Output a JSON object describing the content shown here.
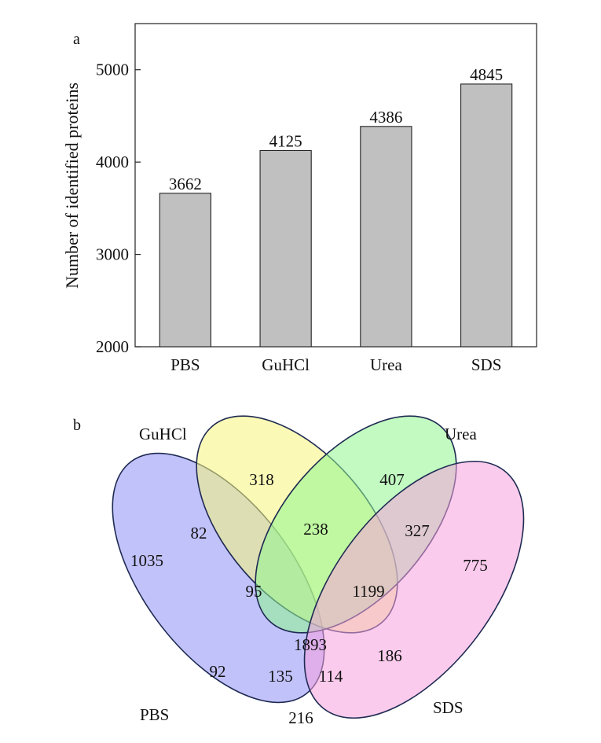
{
  "chart_data": [
    {
      "type": "bar",
      "panel_label": "a",
      "title": "",
      "xlabel": "",
      "ylabel": "Number of identified proteins",
      "categories": [
        "PBS",
        "GuHCl",
        "Urea",
        "SDS"
      ],
      "values": [
        3662,
        4125,
        4386,
        4845
      ],
      "value_labels": [
        "3662",
        "4125",
        "4386",
        "4845"
      ],
      "ylim": [
        2000,
        5500
      ],
      "yticks": [
        2000,
        3000,
        4000,
        5000
      ],
      "ytick_labels": [
        "2000",
        "3000",
        "4000",
        "5000"
      ],
      "bar_color": "#c0c0c0",
      "grid": false
    },
    {
      "type": "venn",
      "panel_label": "b",
      "sets": [
        {
          "name": "PBS",
          "color": "#8f8ff8"
        },
        {
          "name": "GuHCl",
          "color": "#f5f57a"
        },
        {
          "name": "Urea",
          "color": "#8ff58f"
        },
        {
          "name": "SDS",
          "color": "#f5a0dc"
        }
      ],
      "regions": [
        {
          "sets": [
            "PBS"
          ],
          "value": 1035,
          "label": "1035"
        },
        {
          "sets": [
            "GuHCl"
          ],
          "value": 318,
          "label": "318"
        },
        {
          "sets": [
            "Urea"
          ],
          "value": 407,
          "label": "407"
        },
        {
          "sets": [
            "SDS"
          ],
          "value": 775,
          "label": "775"
        },
        {
          "sets": [
            "PBS",
            "GuHCl"
          ],
          "value": 82,
          "label": "82"
        },
        {
          "sets": [
            "GuHCl",
            "Urea"
          ],
          "value": 238,
          "label": "238"
        },
        {
          "sets": [
            "Urea",
            "SDS"
          ],
          "value": 327,
          "label": "327"
        },
        {
          "sets": [
            "PBS",
            "GuHCl",
            "Urea"
          ],
          "value": 95,
          "label": "95"
        },
        {
          "sets": [
            "GuHCl",
            "Urea",
            "SDS"
          ],
          "value": 1199,
          "label": "1199"
        },
        {
          "sets": [
            "PBS",
            "GuHCl",
            "Urea",
            "SDS"
          ],
          "value": 1893,
          "label": "1893"
        },
        {
          "sets": [
            "PBS",
            "Urea"
          ],
          "value": 92,
          "label": "92"
        },
        {
          "sets": [
            "GuHCl",
            "SDS"
          ],
          "value": 186,
          "label": "186"
        },
        {
          "sets": [
            "PBS",
            "Urea",
            "SDS"
          ],
          "value": 135,
          "label": "135"
        },
        {
          "sets": [
            "PBS",
            "GuHCl",
            "SDS"
          ],
          "value": 114,
          "label": "114"
        },
        {
          "sets": [
            "PBS",
            "SDS"
          ],
          "value": 216,
          "label": "216"
        }
      ]
    }
  ]
}
